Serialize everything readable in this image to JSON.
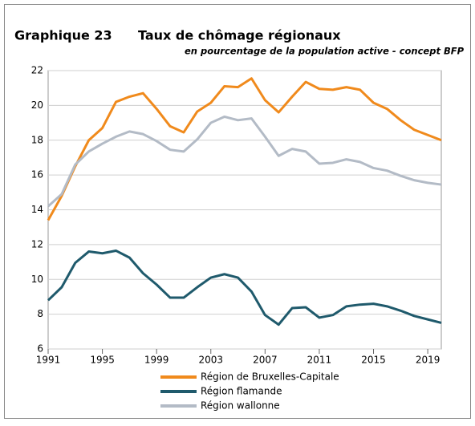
{
  "chart_data": {
    "type": "line",
    "label": "Graphique 23",
    "title": "Taux de chômage régionaux",
    "subtitle": "en pourcentage de la population active - concept BFP",
    "x": [
      1991,
      1992,
      1993,
      1994,
      1995,
      1996,
      1997,
      1998,
      1999,
      2000,
      2001,
      2002,
      2003,
      2004,
      2005,
      2006,
      2007,
      2008,
      2009,
      2010,
      2011,
      2012,
      2013,
      2014,
      2015,
      2016,
      2017,
      2018,
      2019,
      2020
    ],
    "series": [
      {
        "name": "Région de Bruxelles-Capitale",
        "color": "#f08a1c",
        "values": [
          13.4,
          14.8,
          16.5,
          18.0,
          18.7,
          20.2,
          20.5,
          20.7,
          19.8,
          18.8,
          18.45,
          19.65,
          20.15,
          21.1,
          21.05,
          21.55,
          20.3,
          19.6,
          20.5,
          21.35,
          20.95,
          20.9,
          21.05,
          20.9,
          20.15,
          19.8,
          19.15,
          18.6,
          18.3,
          18.0
        ]
      },
      {
        "name": "Région flamande",
        "color": "#1f5a6c",
        "values": [
          8.8,
          9.55,
          10.95,
          11.6,
          11.5,
          11.65,
          11.25,
          10.35,
          9.7,
          8.95,
          8.95,
          9.55,
          10.1,
          10.3,
          10.1,
          9.3,
          7.95,
          7.4,
          8.35,
          8.4,
          7.8,
          7.95,
          8.45,
          8.55,
          8.6,
          8.45,
          8.2,
          7.9,
          7.7,
          7.5
        ]
      },
      {
        "name": "Région wallonne",
        "color": "#b3bbc6",
        "values": [
          14.2,
          14.9,
          16.6,
          17.35,
          17.8,
          18.2,
          18.5,
          18.35,
          17.95,
          17.45,
          17.35,
          18.05,
          19.0,
          19.35,
          19.15,
          19.25,
          18.2,
          17.1,
          17.5,
          17.35,
          16.65,
          16.7,
          16.9,
          16.75,
          16.4,
          16.25,
          15.95,
          15.7,
          15.55,
          15.45
        ]
      }
    ],
    "xlim": [
      1991,
      2020
    ],
    "xticks": [
      1991,
      1995,
      1999,
      2003,
      2007,
      2011,
      2015,
      2019
    ],
    "ylim": [
      6,
      22
    ],
    "yticks": [
      6,
      8,
      10,
      12,
      14,
      16,
      18,
      20,
      22
    ],
    "grid": true
  }
}
